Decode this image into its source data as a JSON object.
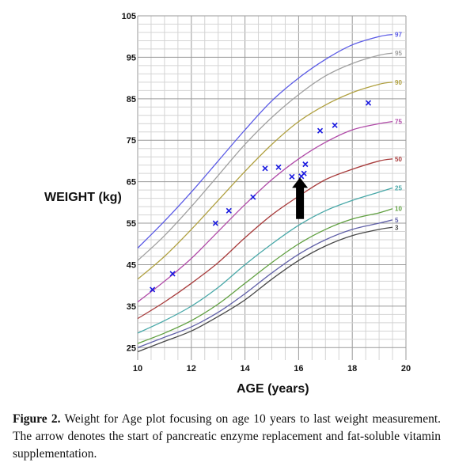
{
  "chart_data": {
    "type": "line",
    "xlabel": "AGE (years)",
    "ylabel": "WEIGHT (kg)",
    "xlim": [
      10,
      20
    ],
    "ylim": [
      22,
      105
    ],
    "x_ticks": [
      10,
      12,
      14,
      16,
      18,
      20
    ],
    "y_ticks": [
      25,
      35,
      45,
      55,
      65,
      75,
      85,
      95,
      105
    ],
    "grid": true,
    "ages": [
      10,
      11,
      12,
      13,
      14,
      15,
      16,
      17,
      18,
      19,
      19.5
    ],
    "series": [
      {
        "name": "97",
        "color": "#5a5ae6",
        "values": [
          49,
          55.5,
          62.5,
          70,
          77.5,
          84.5,
          90,
          94.5,
          98,
          100,
          100.5
        ]
      },
      {
        "name": "95",
        "color": "#a0a0a0",
        "values": [
          46,
          52,
          59,
          66.5,
          74,
          80.5,
          86,
          90.5,
          93.5,
          95.5,
          96
        ]
      },
      {
        "name": "90",
        "color": "#b0a040",
        "values": [
          41.5,
          47,
          53.5,
          60.5,
          67.5,
          74,
          79.5,
          83.5,
          86.5,
          88.5,
          89
        ]
      },
      {
        "name": "75",
        "color": "#b04aa8",
        "values": [
          36,
          41,
          46.5,
          53,
          59.5,
          65.5,
          70.5,
          74.5,
          77.5,
          79,
          79.5
        ]
      },
      {
        "name": "50",
        "color": "#a83c3c",
        "values": [
          32,
          36,
          40.5,
          45.5,
          51.5,
          57,
          61.5,
          65.5,
          68,
          70,
          70.5
        ]
      },
      {
        "name": "25",
        "color": "#48a8a8",
        "values": [
          28.5,
          31.5,
          35,
          39.5,
          45,
          50,
          54.5,
          58,
          60.5,
          62.5,
          63.5
        ]
      },
      {
        "name": "10",
        "color": "#60a040",
        "values": [
          26,
          28.5,
          31.5,
          35.5,
          40.5,
          45.5,
          50,
          53.5,
          56,
          57.5,
          58.5
        ]
      },
      {
        "name": "5",
        "color": "#6060a8",
        "values": [
          25,
          27.5,
          30,
          33.5,
          38,
          43,
          47.5,
          51,
          53.5,
          55,
          55.8
        ]
      },
      {
        "name": "3",
        "color": "#484848",
        "values": [
          24,
          26.5,
          29,
          32.5,
          36.5,
          41.5,
          46,
          49.5,
          52,
          53.5,
          54
        ]
      }
    ],
    "measurements": {
      "marker": "x",
      "color": "#1a1ae0",
      "x": [
        10.55,
        11.3,
        12.9,
        13.4,
        14.3,
        14.75,
        15.25,
        15.75,
        16.1,
        16.2,
        16.25,
        16.8,
        17.35,
        18.6
      ],
      "y": [
        39,
        42.8,
        55,
        58,
        61.3,
        68.2,
        68.5,
        66.2,
        66.3,
        67,
        69.2,
        77.3,
        78.6,
        84
      ]
    },
    "annotation_arrow": {
      "x": 16.05,
      "y_top": 66,
      "y_bottom": 56
    }
  },
  "caption": {
    "label": "Figure 2.",
    "text": " Weight for Age plot focusing on age 10 years to last weight measurement. The arrow denotes the start of pancreatic enzyme replacement and fat-soluble vitamin supplementation."
  }
}
